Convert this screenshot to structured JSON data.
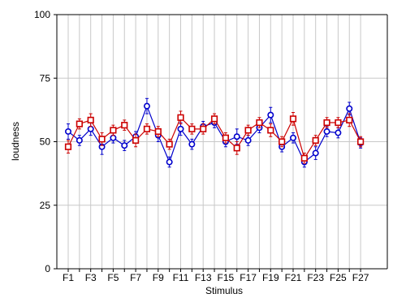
{
  "chart_data": {
    "type": "line",
    "xlabel": "Stimulus",
    "ylabel": "loudness",
    "ylim": [
      0,
      100
    ],
    "yticks": [
      0,
      25,
      50,
      75,
      100
    ],
    "grid": true,
    "categories": [
      "F1",
      "F2",
      "F3",
      "F4",
      "F5",
      "F6",
      "F7",
      "F8",
      "F9",
      "F10",
      "F11",
      "F12",
      "F13",
      "F14",
      "F15",
      "F16",
      "F17",
      "F18",
      "F19",
      "F20",
      "F21",
      "F22",
      "F23",
      "F24",
      "F25",
      "F26",
      "F27"
    ],
    "x_tick_labels": [
      "F1",
      "F3",
      "F5",
      "F7",
      "F9",
      "F11",
      "F13",
      "F15",
      "F17",
      "F19",
      "F21",
      "F23",
      "F25",
      "F27"
    ],
    "series": [
      {
        "color": "#0000cc",
        "marker": "circle",
        "values": [
          54,
          50.5,
          55,
          48,
          51.5,
          48.5,
          52,
          64,
          52.5,
          42,
          55,
          49,
          56,
          57.5,
          50,
          52,
          50.5,
          55.5,
          60.5,
          48,
          51.5,
          42,
          45.5,
          54,
          53.5,
          63,
          49.5
        ],
        "error": [
          3,
          2,
          2.5,
          3,
          2,
          2,
          2,
          3,
          2.5,
          2,
          2.5,
          2,
          2,
          2,
          2,
          3,
          2,
          2,
          3,
          2,
          2,
          2,
          2.5,
          2,
          2,
          2.5,
          2
        ]
      },
      {
        "color": "#cc0000",
        "marker": "square",
        "values": [
          48,
          57,
          58.5,
          51,
          54.5,
          56.5,
          50.5,
          55,
          54,
          49,
          59.5,
          55,
          55,
          59,
          51.5,
          47.5,
          54.5,
          57.5,
          54.5,
          50,
          59,
          43.5,
          50.5,
          57.5,
          57.5,
          58.5,
          50
        ],
        "error": [
          2.5,
          2,
          2.5,
          2.5,
          2,
          2,
          2.5,
          2,
          2,
          2,
          2.5,
          2,
          2,
          2,
          2,
          2.5,
          2,
          2,
          2.5,
          2,
          2.5,
          2,
          2,
          2,
          2,
          2.5,
          2
        ]
      }
    ]
  }
}
